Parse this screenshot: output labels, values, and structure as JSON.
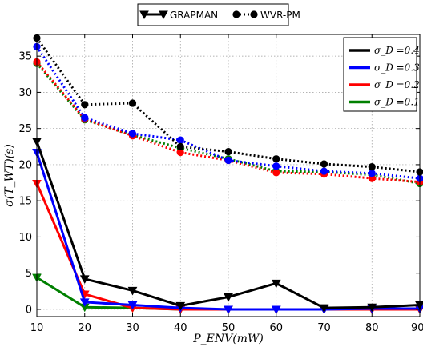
{
  "chart_data": {
    "type": "line",
    "xlabel": "P_ENV(mW)",
    "ylabel": "σ(T_WT)(s)",
    "xlim": [
      10,
      90
    ],
    "ylim": [
      -1,
      38
    ],
    "x": [
      10,
      20,
      30,
      40,
      50,
      60,
      70,
      80,
      90
    ],
    "x_ticks": [
      10,
      20,
      30,
      40,
      50,
      60,
      70,
      80,
      90
    ],
    "y_ticks": [
      0,
      5,
      10,
      15,
      20,
      25,
      30,
      35
    ],
    "grid": true,
    "legend_top": {
      "position": "top-center",
      "entries": [
        {
          "label": "GRAPMAN",
          "style": "solid",
          "marker": "triangle-down"
        },
        {
          "label": "WVR-PM",
          "style": "dotted",
          "marker": "circle"
        }
      ]
    },
    "legend_inner": {
      "position": "top-right",
      "entries": [
        {
          "label": "σ_D =0.4",
          "color": "#000000"
        },
        {
          "label": "σ_D =0.3",
          "color": "#0000ff"
        },
        {
          "label": "σ_D =0.2",
          "color": "#ff0000"
        },
        {
          "label": "σ_D =0.1",
          "color": "#008000"
        }
      ]
    },
    "series": [
      {
        "method": "WVR-PM",
        "sigma_D": 0.4,
        "color": "#000000",
        "values": [
          37.5,
          28.3,
          28.5,
          22.5,
          21.8,
          20.8,
          20.1,
          19.7,
          19.0
        ]
      },
      {
        "method": "WVR-PM",
        "sigma_D": 0.3,
        "color": "#0000ff",
        "values": [
          36.3,
          26.5,
          24.3,
          23.4,
          20.6,
          19.8,
          19.1,
          18.8,
          18.1
        ]
      },
      {
        "method": "WVR-PM",
        "sigma_D": 0.2,
        "color": "#ff0000",
        "values": [
          34.2,
          26.3,
          24.0,
          21.7,
          20.6,
          18.9,
          18.7,
          18.1,
          17.6
        ]
      },
      {
        "method": "WVR-PM",
        "sigma_D": 0.1,
        "color": "#008000",
        "values": [
          34.0,
          26.2,
          24.1,
          22.3,
          20.8,
          19.1,
          19.0,
          18.6,
          17.4
        ]
      },
      {
        "method": "GRAPMAN",
        "sigma_D": 0.4,
        "color": "#000000",
        "values": [
          23.2,
          4.2,
          2.6,
          0.5,
          1.7,
          3.6,
          0.2,
          0.3,
          0.6
        ]
      },
      {
        "method": "GRAPMAN",
        "sigma_D": 0.3,
        "color": "#0000ff",
        "values": [
          21.7,
          1.0,
          0.6,
          0.2,
          0.0,
          0.0,
          0.0,
          0.1,
          0.1
        ]
      },
      {
        "method": "GRAPMAN",
        "sigma_D": 0.2,
        "color": "#ff0000",
        "values": [
          17.4,
          2.1,
          0.2,
          0.0,
          0.0,
          0.0,
          0.0,
          0.0,
          0.0
        ]
      },
      {
        "method": "GRAPMAN",
        "sigma_D": 0.1,
        "color": "#008000",
        "values": [
          4.4,
          0.3,
          0.2,
          0.0,
          0.0,
          0.0,
          0.0,
          0.0,
          0.0
        ]
      }
    ]
  }
}
